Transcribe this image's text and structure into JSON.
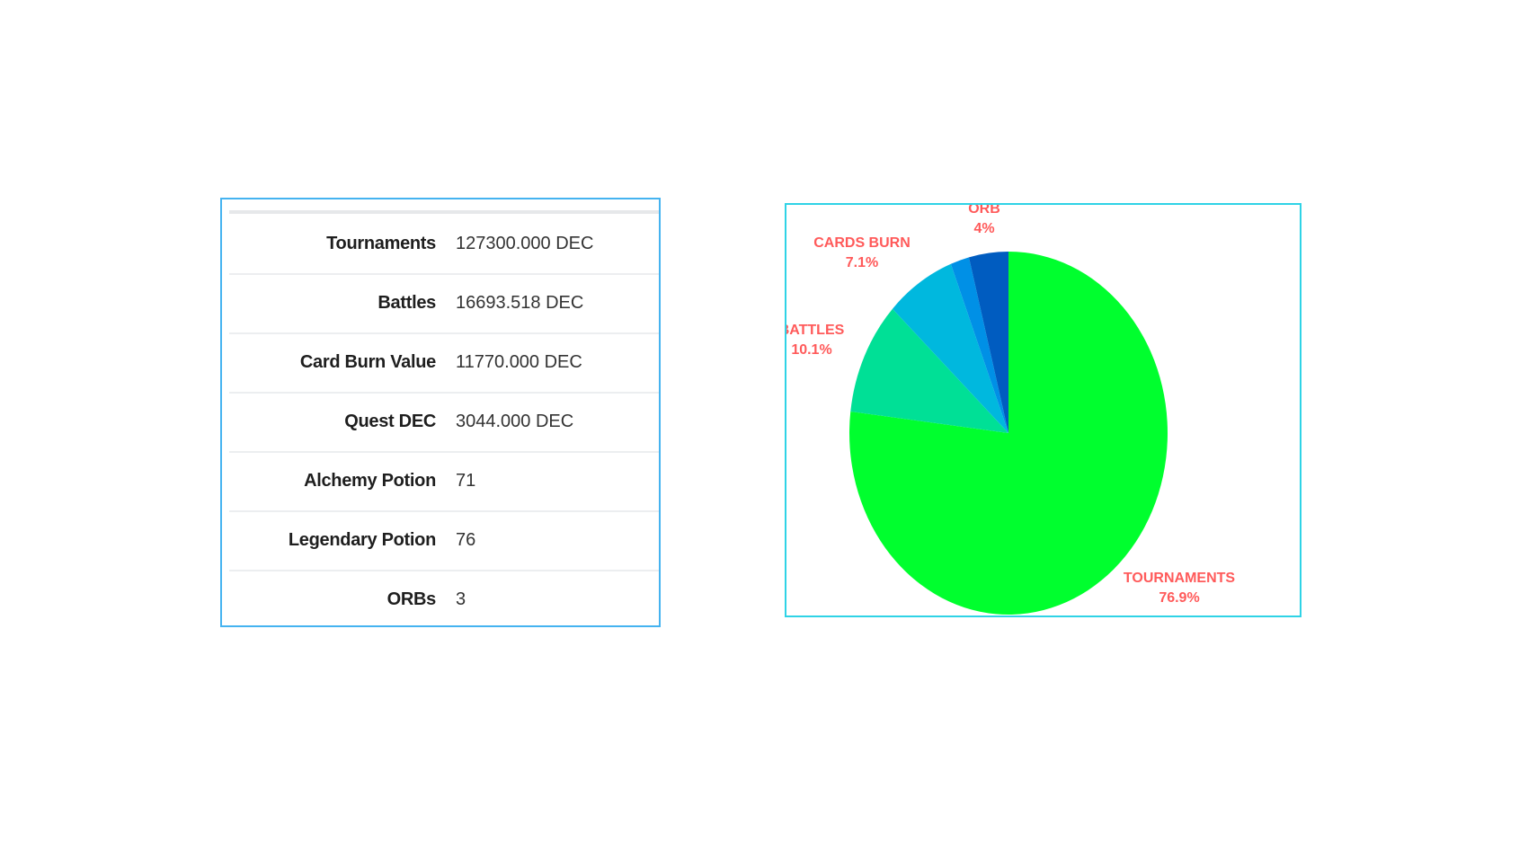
{
  "table": {
    "rows": [
      {
        "label": "Tournaments",
        "value": "127300.000 DEC"
      },
      {
        "label": "Battles",
        "value": "16693.518 DEC"
      },
      {
        "label": "Card Burn Value",
        "value": "11770.000 DEC"
      },
      {
        "label": "Quest DEC",
        "value": "3044.000 DEC"
      },
      {
        "label": "Alchemy Potion",
        "value": "71"
      },
      {
        "label": "Legendary Potion",
        "value": "76"
      },
      {
        "label": "ORBs",
        "value": "3"
      }
    ]
  },
  "chart_data": {
    "type": "pie",
    "title": "",
    "slices": [
      {
        "name": "TOURNAMENTS",
        "value": 76.9,
        "label": "76.9%",
        "color": "#00ff2e"
      },
      {
        "name": "BATTLES",
        "value": 10.1,
        "label": "10.1%",
        "color": "#00e096"
      },
      {
        "name": "CARDS BURN",
        "value": 7.1,
        "label": "7.1%",
        "color": "#00b8de"
      },
      {
        "name": "",
        "value": 1.9,
        "label": "",
        "color": "#0090e6"
      },
      {
        "name": "ORB",
        "value": 4,
        "label": "4%",
        "color": "#005cc0"
      }
    ],
    "start": "top",
    "direction": "clockwise",
    "label_color": "#ff5a5a"
  }
}
